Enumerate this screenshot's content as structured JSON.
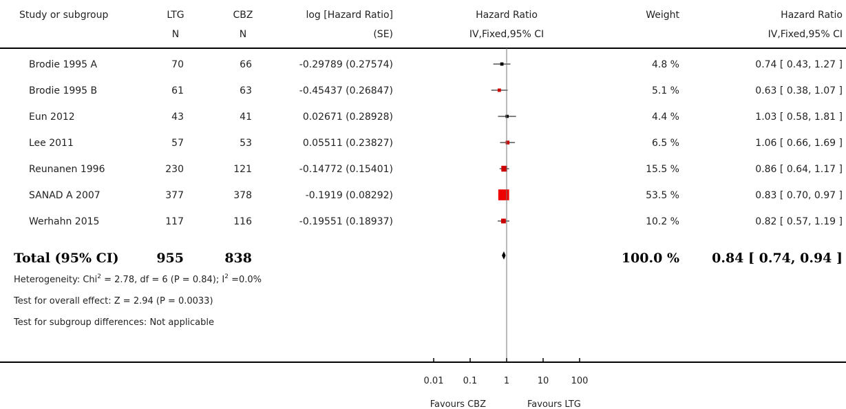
{
  "chart_data": {
    "type": "forest",
    "headers": {
      "study": "Study or subgroup",
      "g1": [
        "LTG",
        "N"
      ],
      "g2": [
        "CBZ",
        "N"
      ],
      "loghr": [
        "log [Hazard Ratio]",
        "(SE)"
      ],
      "hr_plot": [
        "Hazard Ratio",
        "IV,Fixed,95% CI"
      ],
      "weight": "Weight",
      "hr_text": [
        "Hazard Ratio",
        "IV,Fixed,95% CI"
      ]
    },
    "studies": [
      {
        "name": "Brodie 1995 A",
        "n1": "70",
        "n2": "66",
        "loghr": "-0.29789 (0.27574)",
        "weight": "4.8 %",
        "ci": "0.74 [ 0.43, 1.27 ]",
        "hr": 0.74,
        "lo": 0.43,
        "hi": 1.27,
        "w": 4.8,
        "color": "#000000"
      },
      {
        "name": "Brodie 1995 B",
        "n1": "61",
        "n2": "63",
        "loghr": "-0.45437 (0.26847)",
        "weight": "5.1 %",
        "ci": "0.63 [ 0.38, 1.07 ]",
        "hr": 0.63,
        "lo": 0.38,
        "hi": 1.07,
        "w": 5.1,
        "color": "#cc0000"
      },
      {
        "name": "Eun 2012",
        "n1": "43",
        "n2": "41",
        "loghr": "0.02671 (0.28928)",
        "weight": "4.4 %",
        "ci": "1.03 [ 0.58, 1.81 ]",
        "hr": 1.03,
        "lo": 0.58,
        "hi": 1.81,
        "w": 4.4,
        "color": "#000000"
      },
      {
        "name": "Lee 2011",
        "n1": "57",
        "n2": "53",
        "loghr": "0.05511 (0.23827)",
        "weight": "6.5 %",
        "ci": "1.06 [ 0.66, 1.69 ]",
        "hr": 1.06,
        "lo": 0.66,
        "hi": 1.69,
        "w": 6.5,
        "color": "#cc0000"
      },
      {
        "name": "Reunanen 1996",
        "n1": "230",
        "n2": "121",
        "loghr": "-0.14772 (0.15401)",
        "weight": "15.5 %",
        "ci": "0.86 [ 0.64, 1.17 ]",
        "hr": 0.86,
        "lo": 0.64,
        "hi": 1.17,
        "w": 15.5,
        "color": "#cc0000"
      },
      {
        "name": "SANAD A 2007",
        "n1": "377",
        "n2": "378",
        "loghr": "-0.1919 (0.08292)",
        "weight": "53.5 %",
        "ci": "0.83 [ 0.70, 0.97 ]",
        "hr": 0.83,
        "lo": 0.7,
        "hi": 0.97,
        "w": 53.5,
        "color": "#ee0000"
      },
      {
        "name": "Werhahn 2015",
        "n1": "117",
        "n2": "116",
        "loghr": "-0.19551 (0.18937)",
        "weight": "10.2 %",
        "ci": "0.82 [ 0.57, 1.19 ]",
        "hr": 0.82,
        "lo": 0.57,
        "hi": 1.19,
        "w": 10.2,
        "color": "#cc0000"
      }
    ],
    "total": {
      "label": "Total (95% CI)",
      "n1": "955",
      "n2": "838",
      "weight": "100.0 %",
      "ci": "0.84 [ 0.74, 0.94 ]",
      "hr": 0.84,
      "lo": 0.74,
      "hi": 0.94
    },
    "notes": [
      {
        "key": "heterogeneity",
        "pre": "Heterogeneity: Chi",
        "sup1": "2",
        "mid": " = 2.78, df = 6 (P = 0.84); I",
        "sup2": "2",
        "post": " =0.0%"
      },
      {
        "key": "overall",
        "text": "Test for overall effect: Z = 2.94 (P = 0.0033)"
      },
      {
        "key": "subgroup",
        "text": "Test for subgroup differences: Not applicable"
      }
    ],
    "axis": {
      "scale": "log",
      "range": [
        0.01,
        100
      ],
      "ticks": [
        0.01,
        0.1,
        1,
        10,
        100
      ],
      "tick_labels": [
        "0.01",
        "0.1",
        "1",
        "10",
        "100"
      ],
      "favours_left": "Favours CBZ",
      "favours_right": "Favours LTG"
    }
  }
}
